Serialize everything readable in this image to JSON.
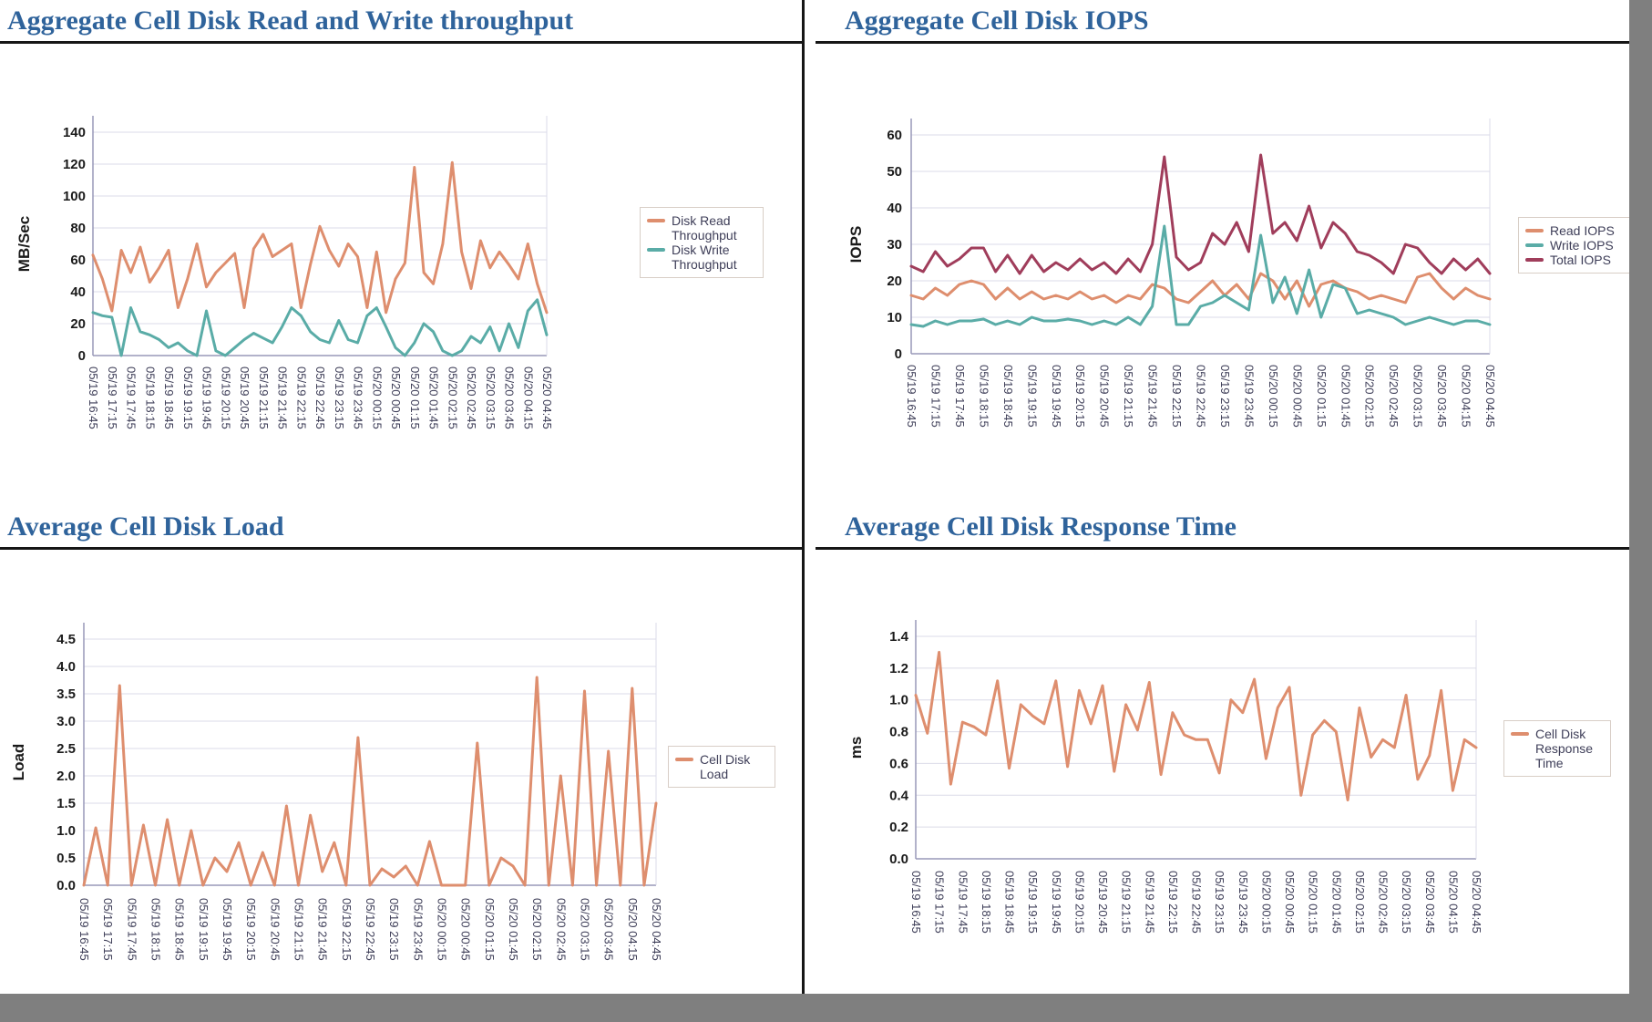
{
  "colors": {
    "title_text": "#2F639B",
    "axis_text": "#3E3E58",
    "tick_text": "#1A1A1A",
    "grid": "#DBDBE8",
    "axis_line": "#9898B8",
    "legend_border": "#D8CEC6",
    "frame_gray": "#7F7F7F",
    "orange": "#DE8E6E",
    "teal": "#5AACA7",
    "maroon": "#A03D5B"
  },
  "x_labels": [
    "05/19 16:45",
    "05/19 17:15",
    "05/19 17:45",
    "05/19 18:15",
    "05/19 18:45",
    "05/19 19:15",
    "05/19 19:45",
    "05/19 20:15",
    "05/19 20:45",
    "05/19 21:15",
    "05/19 21:45",
    "05/19 22:15",
    "05/19 22:45",
    "05/19 23:15",
    "05/19 23:45",
    "05/20 00:15",
    "05/20 00:45",
    "05/20 01:15",
    "05/20 01:45",
    "05/20 02:15",
    "05/20 02:45",
    "05/20 03:15",
    "05/20 03:45",
    "05/20 04:15",
    "05/20 04:45"
  ],
  "chart_data": [
    {
      "type": "line",
      "title": "Aggregate Cell Disk Read and Write throughput",
      "xlabel": "",
      "ylabel": "MB/Sec",
      "ylim": [
        0,
        140
      ],
      "ytick_values": [
        0,
        20,
        40,
        60,
        80,
        100,
        120,
        140
      ],
      "ytick_labels": [
        "0",
        "20",
        "40",
        "60",
        "80",
        "100",
        "120",
        "140"
      ],
      "grid": true,
      "legend_position": "right",
      "x_interval_minutes": 15,
      "points_per_label": 2,
      "x_labels": [
        "05/19 16:45",
        "05/19 17:15",
        "05/19 17:45",
        "05/19 18:15",
        "05/19 18:45",
        "05/19 19:15",
        "05/19 19:45",
        "05/19 20:15",
        "05/19 20:45",
        "05/19 21:15",
        "05/19 21:45",
        "05/19 22:15",
        "05/19 22:45",
        "05/19 23:15",
        "05/19 23:45",
        "05/20 00:15",
        "05/20 00:45",
        "05/20 01:15",
        "05/20 01:45",
        "05/20 02:15",
        "05/20 02:45",
        "05/20 03:15",
        "05/20 03:45",
        "05/20 04:15",
        "05/20 04:45"
      ],
      "series": [
        {
          "name": "Disk Read Throughput",
          "color_key": "orange",
          "values": [
            63,
            48,
            28,
            66,
            52,
            68,
            46,
            55,
            66,
            30,
            48,
            70,
            43,
            52,
            58,
            64,
            30,
            67,
            76,
            62,
            66,
            70,
            30,
            57,
            81,
            66,
            56,
            70,
            62,
            30,
            65,
            27,
            48,
            58,
            118,
            52,
            45,
            70,
            121,
            65,
            42,
            72,
            55,
            65,
            57,
            48,
            70,
            45,
            27
          ]
        },
        {
          "name": "Disk Write Throughput",
          "color_key": "teal",
          "values": [
            27,
            25,
            24,
            0,
            30,
            15,
            13,
            10,
            5,
            8,
            3,
            0,
            28,
            3,
            0,
            5,
            10,
            14,
            11,
            8,
            18,
            30,
            25,
            15,
            10,
            8,
            22,
            10,
            8,
            25,
            30,
            18,
            5,
            0,
            8,
            20,
            15,
            3,
            0,
            3,
            12,
            8,
            18,
            3,
            20,
            5,
            28,
            35,
            13
          ]
        }
      ]
    },
    {
      "type": "line",
      "title": "Aggregate Cell Disk IOPS",
      "xlabel": "",
      "ylabel": "IOPS",
      "ylim": [
        0,
        60
      ],
      "ytick_values": [
        0,
        10,
        20,
        30,
        40,
        50,
        60
      ],
      "ytick_labels": [
        "0",
        "10",
        "20",
        "30",
        "40",
        "50",
        "60"
      ],
      "grid": true,
      "legend_position": "right",
      "x_interval_minutes": 15,
      "points_per_label": 2,
      "x_labels": [
        "05/19 16:45",
        "05/19 17:15",
        "05/19 17:45",
        "05/19 18:15",
        "05/19 18:45",
        "05/19 19:15",
        "05/19 19:45",
        "05/19 20:15",
        "05/19 20:45",
        "05/19 21:15",
        "05/19 21:45",
        "05/19 22:15",
        "05/19 22:45",
        "05/19 23:15",
        "05/19 23:45",
        "05/20 00:15",
        "05/20 00:45",
        "05/20 01:15",
        "05/20 01:45",
        "05/20 02:15",
        "05/20 02:45",
        "05/20 03:15",
        "05/20 03:45",
        "05/20 04:15",
        "05/20 04:45"
      ],
      "series": [
        {
          "name": "Read IOPS",
          "color_key": "orange",
          "values": [
            16,
            15,
            18,
            16,
            19,
            20,
            19,
            15,
            18,
            15,
            17,
            15,
            16,
            15,
            17,
            15,
            16,
            14,
            16,
            15,
            19,
            18,
            15,
            14,
            17,
            20,
            16,
            19,
            15,
            22,
            20,
            15,
            20,
            13,
            19,
            20,
            18,
            17,
            15,
            16,
            15,
            14,
            21,
            22,
            18,
            15,
            18,
            16,
            15
          ]
        },
        {
          "name": "Write IOPS",
          "color_key": "teal",
          "values": [
            8,
            7.5,
            9,
            8,
            9,
            9,
            9.5,
            8,
            9,
            8,
            10,
            9,
            9,
            9.5,
            9,
            8,
            9,
            8,
            10,
            8,
            13,
            35,
            8,
            8,
            13,
            14,
            16,
            14,
            12,
            32.5,
            14,
            21,
            11,
            23,
            10,
            19,
            18,
            11,
            12,
            11,
            10,
            8,
            9,
            10,
            9,
            8,
            9,
            9,
            8
          ]
        },
        {
          "name": "Total IOPS",
          "color_key": "maroon",
          "values": [
            24,
            22.5,
            28,
            24,
            26,
            29,
            29,
            22.5,
            27,
            22,
            27,
            22.5,
            25,
            23,
            26,
            23,
            25,
            22,
            26,
            22.5,
            30,
            54,
            26.5,
            23,
            25,
            33,
            30,
            36,
            28,
            54.5,
            33,
            36,
            31,
            40.5,
            29,
            36,
            33,
            28,
            27,
            25,
            22,
            30,
            29,
            25,
            22,
            26,
            23,
            26,
            22
          ]
        }
      ]
    },
    {
      "type": "line",
      "title": "Average Cell Disk Load",
      "xlabel": "",
      "ylabel": "Load",
      "ylim": [
        0,
        4.5
      ],
      "ytick_values": [
        0,
        0.5,
        1.0,
        1.5,
        2.0,
        2.5,
        3.0,
        3.5,
        4.0,
        4.5
      ],
      "ytick_labels": [
        "0.0",
        "0.5",
        "1.0",
        "1.5",
        "2.0",
        "2.5",
        "3.0",
        "3.5",
        "4.0",
        "4.5"
      ],
      "grid": true,
      "legend_position": "right",
      "x_interval_minutes": 15,
      "points_per_label": 2,
      "x_labels": [
        "05/19 16:45",
        "05/19 17:15",
        "05/19 17:45",
        "05/19 18:15",
        "05/19 18:45",
        "05/19 19:15",
        "05/19 19:45",
        "05/19 20:15",
        "05/19 20:45",
        "05/19 21:15",
        "05/19 21:45",
        "05/19 22:15",
        "05/19 22:45",
        "05/19 23:15",
        "05/19 23:45",
        "05/20 00:15",
        "05/20 00:45",
        "05/20 01:15",
        "05/20 01:45",
        "05/20 02:15",
        "05/20 02:45",
        "05/20 03:15",
        "05/20 03:45",
        "05/20 04:15",
        "05/20 04:45"
      ],
      "series": [
        {
          "name": "Cell Disk Load",
          "color_key": "orange",
          "values": [
            0,
            1.05,
            0,
            3.65,
            0,
            1.1,
            0,
            1.2,
            0,
            1.0,
            0,
            0.5,
            0.25,
            0.78,
            0,
            0.6,
            0,
            1.45,
            0,
            1.28,
            0.25,
            0.78,
            0,
            2.7,
            0,
            0.3,
            0.15,
            0.35,
            0,
            0.8,
            0,
            0,
            0,
            2.6,
            0,
            0.5,
            0.35,
            0,
            3.8,
            0,
            2.0,
            0,
            3.55,
            0,
            2.45,
            0,
            3.6,
            0,
            1.5
          ]
        }
      ]
    },
    {
      "type": "line",
      "title": "Average Cell Disk Response Time",
      "xlabel": "",
      "ylabel": "ms",
      "ylim": [
        0,
        1.4
      ],
      "ytick_values": [
        0,
        0.2,
        0.4,
        0.6,
        0.8,
        1.0,
        1.2,
        1.4
      ],
      "ytick_labels": [
        "0.0",
        "0.2",
        "0.4",
        "0.6",
        "0.8",
        "1.0",
        "1.2",
        "1.4"
      ],
      "grid": true,
      "legend_position": "right",
      "x_interval_minutes": 15,
      "points_per_label": 2,
      "x_labels": [
        "05/19 16:45",
        "05/19 17:15",
        "05/19 17:45",
        "05/19 18:15",
        "05/19 18:45",
        "05/19 19:15",
        "05/19 19:45",
        "05/19 20:15",
        "05/19 20:45",
        "05/19 21:15",
        "05/19 21:45",
        "05/19 22:15",
        "05/19 22:45",
        "05/19 23:15",
        "05/19 23:45",
        "05/20 00:15",
        "05/20 00:45",
        "05/20 01:15",
        "05/20 01:45",
        "05/20 02:15",
        "05/20 02:45",
        "05/20 03:15",
        "05/20 03:45",
        "05/20 04:15",
        "05/20 04:45"
      ],
      "series": [
        {
          "name": "Cell Disk Response Time",
          "color_key": "orange",
          "values": [
            1.03,
            0.79,
            1.3,
            0.47,
            0.86,
            0.83,
            0.78,
            1.12,
            0.57,
            0.97,
            0.9,
            0.85,
            1.12,
            0.58,
            1.06,
            0.85,
            1.09,
            0.55,
            0.97,
            0.81,
            1.11,
            0.53,
            0.92,
            0.78,
            0.75,
            0.75,
            0.54,
            1.0,
            0.92,
            1.13,
            0.63,
            0.95,
            1.08,
            0.4,
            0.78,
            0.87,
            0.8,
            0.37,
            0.95,
            0.64,
            0.75,
            0.7,
            1.03,
            0.5,
            0.65,
            1.06,
            0.43,
            0.75,
            0.7
          ]
        }
      ]
    }
  ]
}
